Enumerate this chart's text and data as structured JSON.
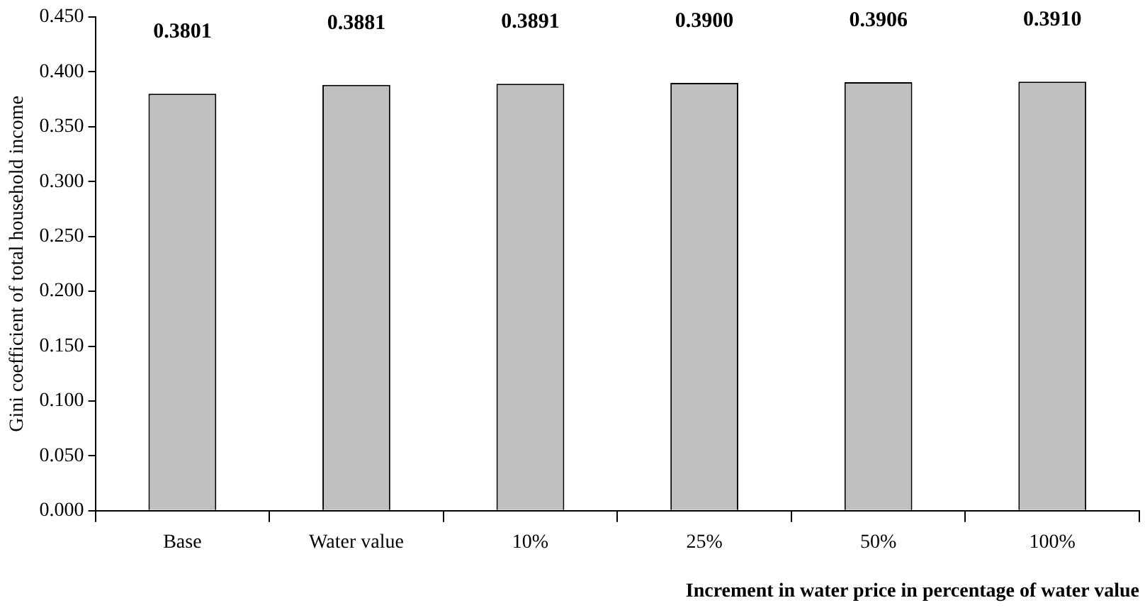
{
  "chart_data": {
    "type": "bar",
    "xlabel": "Increment in water price in percentage of water value",
    "ylabel": "Gini coefficient of total household income",
    "categories": [
      "Base",
      "Water value",
      "10%",
      "25%",
      "50%",
      "100%"
    ],
    "values": [
      0.3801,
      0.3881,
      0.3891,
      0.39,
      0.3906,
      0.391
    ],
    "color": "#c0c0c0",
    "ylim": [
      0,
      0.45
    ],
    "yticks": [
      {
        "value": 0,
        "label": "0.000"
      },
      {
        "value": 0.05,
        "label": "0.050"
      },
      {
        "value": 0.1,
        "label": "0.100"
      },
      {
        "value": 0.15,
        "label": "0.150"
      },
      {
        "value": 0.2,
        "label": "0.200"
      },
      {
        "value": 0.25,
        "label": "0.250"
      },
      {
        "value": 0.3,
        "label": "0.300"
      },
      {
        "value": 0.35,
        "label": "0.350"
      },
      {
        "value": 0.4,
        "label": "0.400"
      },
      {
        "value": 0.45,
        "label": "0.450"
      }
    ],
    "value_labels": [
      "0.3801",
      "0.3881",
      "0.3891",
      "0.3900",
      "0.3906",
      "0.3910"
    ],
    "grid": false,
    "legend": false
  }
}
